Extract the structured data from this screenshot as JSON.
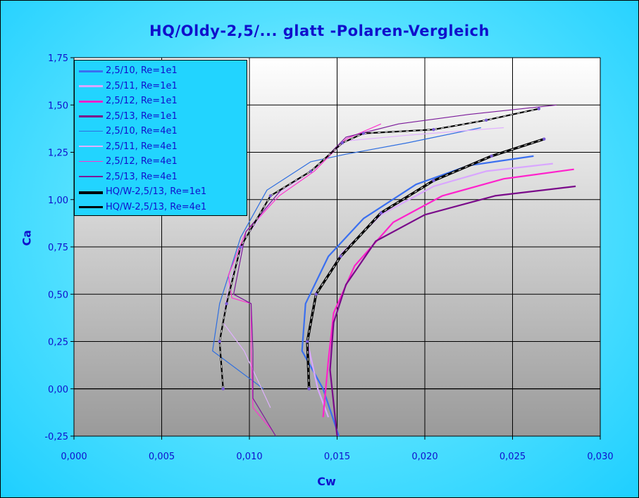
{
  "chart_data": {
    "type": "line",
    "title": "HQ/Oldy-2,5/... glatt -Polaren-Vergleich",
    "xlabel": "Cw",
    "ylabel": "Ca",
    "xlim": [
      0,
      0.03
    ],
    "ylim": [
      -0.25,
      1.75
    ],
    "x_ticks": [
      "0,000",
      "0,005",
      "0,010",
      "0,015",
      "0,020",
      "0,025",
      "0,030"
    ],
    "y_ticks": [
      "-0,25",
      "0,00",
      "0,25",
      "0,50",
      "0,75",
      "1,00",
      "1,25",
      "1,50",
      "1,75"
    ],
    "grid": true,
    "legend_position": "top-left",
    "series": [
      {
        "name": "2,5/10, Re=1e1",
        "color": "#3a6ff0",
        "width": 2.2,
        "points": [
          [
            0.0151,
            -0.25
          ],
          [
            0.0142,
            0.0
          ],
          [
            0.013,
            0.2
          ],
          [
            0.0132,
            0.45
          ],
          [
            0.0145,
            0.7
          ],
          [
            0.0165,
            0.9
          ],
          [
            0.0195,
            1.08
          ],
          [
            0.0225,
            1.18
          ],
          [
            0.0262,
            1.23
          ]
        ]
      },
      {
        "name": "2,5/11, Re=1e1",
        "color": "#d9a6ff",
        "width": 2.2,
        "points": [
          [
            0.0145,
            -0.15
          ],
          [
            0.0139,
            0.0
          ],
          [
            0.0133,
            0.25
          ],
          [
            0.0138,
            0.5
          ],
          [
            0.0153,
            0.72
          ],
          [
            0.0175,
            0.92
          ],
          [
            0.0205,
            1.07
          ],
          [
            0.0235,
            1.15
          ],
          [
            0.0273,
            1.19
          ]
        ]
      },
      {
        "name": "2,5/12, Re=1e1",
        "color": "#ff22cc",
        "width": 2.2,
        "points": [
          [
            0.0142,
            -0.15
          ],
          [
            0.0145,
            0.15
          ],
          [
            0.0148,
            0.4
          ],
          [
            0.016,
            0.65
          ],
          [
            0.0182,
            0.88
          ],
          [
            0.021,
            1.02
          ],
          [
            0.0245,
            1.11
          ],
          [
            0.0285,
            1.16
          ]
        ]
      },
      {
        "name": "2,5/13, Re=1e1",
        "color": "#7a0a8a",
        "width": 2.2,
        "points": [
          [
            0.015,
            -0.25
          ],
          [
            0.0146,
            0.1
          ],
          [
            0.0148,
            0.35
          ],
          [
            0.0155,
            0.55
          ],
          [
            0.0172,
            0.78
          ],
          [
            0.02,
            0.92
          ],
          [
            0.024,
            1.02
          ],
          [
            0.0286,
            1.07
          ]
        ]
      },
      {
        "name": "2,5/10, Re=4e1",
        "color": "#2e6ee0",
        "width": 1.2,
        "points": [
          [
            0.0108,
            0.0
          ],
          [
            0.0079,
            0.2
          ],
          [
            0.0083,
            0.45
          ],
          [
            0.0095,
            0.8
          ],
          [
            0.011,
            1.05
          ],
          [
            0.0135,
            1.2
          ],
          [
            0.0155,
            1.24
          ],
          [
            0.019,
            1.3
          ],
          [
            0.0232,
            1.38
          ]
        ]
      },
      {
        "name": "2,5/11, Re=4e1",
        "color": "#e0b0ff",
        "width": 1.2,
        "points": [
          [
            0.0112,
            -0.1
          ],
          [
            0.0097,
            0.2
          ],
          [
            0.0085,
            0.35
          ],
          [
            0.0088,
            0.55
          ],
          [
            0.0098,
            0.8
          ],
          [
            0.0115,
            1.02
          ],
          [
            0.0135,
            1.15
          ],
          [
            0.0155,
            1.31
          ],
          [
            0.019,
            1.34
          ],
          [
            0.0245,
            1.38
          ]
        ]
      },
      {
        "name": "2,5/12, Re=4e1",
        "color": "#ff33d0",
        "width": 1.2,
        "points": [
          [
            0.0113,
            -0.22
          ],
          [
            0.0102,
            -0.1
          ],
          [
            0.0101,
            0.2
          ],
          [
            0.0101,
            0.45
          ],
          [
            0.009,
            0.48
          ],
          [
            0.0088,
            0.6
          ],
          [
            0.0098,
            0.83
          ],
          [
            0.0117,
            1.02
          ],
          [
            0.0137,
            1.15
          ],
          [
            0.0155,
            1.32
          ],
          [
            0.0175,
            1.4
          ]
        ]
      },
      {
        "name": "2,5/13, Re=4e1",
        "color": "#7b1a9a",
        "width": 1.2,
        "points": [
          [
            0.0115,
            -0.25
          ],
          [
            0.0102,
            -0.05
          ],
          [
            0.0102,
            0.2
          ],
          [
            0.0101,
            0.45
          ],
          [
            0.0091,
            0.5
          ],
          [
            0.0098,
            0.83
          ],
          [
            0.0118,
            1.05
          ],
          [
            0.0138,
            1.17
          ],
          [
            0.0155,
            1.33
          ],
          [
            0.0185,
            1.4
          ],
          [
            0.0225,
            1.45
          ],
          [
            0.0275,
            1.5
          ]
        ]
      },
      {
        "name": "HQ/W-2,5/13, Re=1e1",
        "color": "#000000",
        "width": 3.5,
        "dashed": true,
        "points": [
          [
            0.0134,
            0.0
          ],
          [
            0.0133,
            0.25
          ],
          [
            0.0138,
            0.5
          ],
          [
            0.0152,
            0.7
          ],
          [
            0.0175,
            0.93
          ],
          [
            0.0205,
            1.1
          ],
          [
            0.0238,
            1.23
          ],
          [
            0.0268,
            1.32
          ]
        ]
      },
      {
        "name": "HQ/W-2,5/13, Re=4e1",
        "color": "#000000",
        "width": 2.2,
        "dashed": true,
        "points": [
          [
            0.0085,
            0.0
          ],
          [
            0.0083,
            0.25
          ],
          [
            0.0087,
            0.45
          ],
          [
            0.0095,
            0.75
          ],
          [
            0.0112,
            1.02
          ],
          [
            0.0135,
            1.15
          ],
          [
            0.0153,
            1.3
          ],
          [
            0.0165,
            1.35
          ],
          [
            0.0205,
            1.37
          ],
          [
            0.0235,
            1.42
          ],
          [
            0.0265,
            1.48
          ]
        ]
      }
    ]
  }
}
